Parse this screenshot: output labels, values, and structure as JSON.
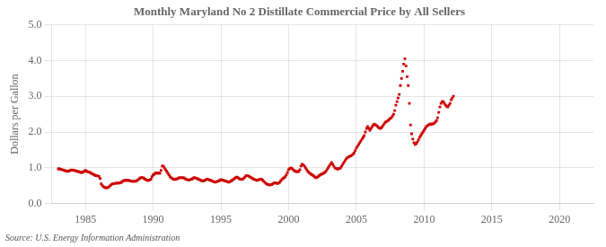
{
  "chart_data": {
    "type": "scatter",
    "title": "Monthly Maryland No 2 Distillate Commercial Price by All Sellers",
    "ylabel": "Dollars per Gallon",
    "annotation": "Source: U.S. Energy Information Administration",
    "color": "#cc0000",
    "marker": "square",
    "grid": true,
    "xlim": [
      1982.5,
      2022.5
    ],
    "ylim": [
      0.0,
      5.0
    ],
    "xticks": [
      1985,
      1990,
      1995,
      2000,
      2005,
      2010,
      2015,
      2020
    ],
    "yticks": [
      {
        "value": 0.0,
        "label": "0.0"
      },
      {
        "value": 1.0,
        "label": "1.0"
      },
      {
        "value": 2.0,
        "label": "2.0"
      },
      {
        "value": 3.0,
        "label": "3.0"
      },
      {
        "value": 4.0,
        "label": "4.0"
      },
      {
        "value": 5.0,
        "label": "5.0"
      }
    ],
    "x": [
      1983.0,
      1983.083,
      1983.167,
      1983.25,
      1983.333,
      1983.417,
      1983.5,
      1983.583,
      1983.667,
      1983.75,
      1983.833,
      1983.917,
      1984.0,
      1984.083,
      1984.167,
      1984.25,
      1984.333,
      1984.417,
      1984.5,
      1984.583,
      1984.667,
      1984.75,
      1984.833,
      1984.917,
      1985.0,
      1985.083,
      1985.167,
      1985.25,
      1985.333,
      1985.417,
      1985.5,
      1985.583,
      1985.667,
      1985.75,
      1985.833,
      1985.917,
      1986.0,
      1986.083,
      1986.167,
      1986.25,
      1986.333,
      1986.417,
      1986.5,
      1986.583,
      1986.667,
      1986.75,
      1986.833,
      1986.917,
      1987.0,
      1987.083,
      1987.167,
      1987.25,
      1987.333,
      1987.417,
      1987.5,
      1987.583,
      1987.667,
      1987.75,
      1987.833,
      1987.917,
      1988.0,
      1988.083,
      1988.167,
      1988.25,
      1988.333,
      1988.417,
      1988.5,
      1988.583,
      1988.667,
      1988.75,
      1988.833,
      1988.917,
      1989.0,
      1989.083,
      1989.167,
      1989.25,
      1989.333,
      1989.417,
      1989.5,
      1989.583,
      1989.667,
      1989.75,
      1989.833,
      1989.917,
      1990.0,
      1990.083,
      1990.167,
      1990.25,
      1990.333,
      1990.417,
      1990.5,
      1990.583,
      1990.667,
      1990.75,
      1990.833,
      1990.917,
      1991.0,
      1991.083,
      1991.167,
      1991.25,
      1991.333,
      1991.417,
      1991.5,
      1991.583,
      1991.667,
      1991.75,
      1991.833,
      1991.917,
      1992.0,
      1992.083,
      1992.167,
      1992.25,
      1992.333,
      1992.417,
      1992.5,
      1992.583,
      1992.667,
      1992.75,
      1992.833,
      1992.917,
      1993.0,
      1993.083,
      1993.167,
      1993.25,
      1993.333,
      1993.417,
      1993.5,
      1993.583,
      1993.667,
      1993.75,
      1993.833,
      1993.917,
      1994.0,
      1994.083,
      1994.167,
      1994.25,
      1994.333,
      1994.417,
      1994.5,
      1994.583,
      1994.667,
      1994.75,
      1994.833,
      1994.917,
      1995.0,
      1995.083,
      1995.167,
      1995.25,
      1995.333,
      1995.417,
      1995.5,
      1995.583,
      1995.667,
      1995.75,
      1995.833,
      1995.917,
      1996.0,
      1996.083,
      1996.167,
      1996.25,
      1996.333,
      1996.417,
      1996.5,
      1996.583,
      1996.667,
      1996.75,
      1996.833,
      1996.917,
      1997.0,
      1997.083,
      1997.167,
      1997.25,
      1997.333,
      1997.417,
      1997.5,
      1997.583,
      1997.667,
      1997.75,
      1997.833,
      1997.917,
      1998.0,
      1998.083,
      1998.167,
      1998.25,
      1998.333,
      1998.417,
      1998.5,
      1998.583,
      1998.667,
      1998.75,
      1998.833,
      1998.917,
      1999.0,
      1999.083,
      1999.167,
      1999.25,
      1999.333,
      1999.417,
      1999.5,
      1999.583,
      1999.667,
      1999.75,
      1999.833,
      1999.917,
      2000.0,
      2000.083,
      2000.167,
      2000.25,
      2000.333,
      2000.417,
      2000.5,
      2000.583,
      2000.667,
      2000.75,
      2000.833,
      2000.917,
      2001.0,
      2001.083,
      2001.167,
      2001.25,
      2001.333,
      2001.417,
      2001.5,
      2001.583,
      2001.667,
      2001.75,
      2001.833,
      2001.917,
      2002.0,
      2002.083,
      2002.167,
      2002.25,
      2002.333,
      2002.417,
      2002.5,
      2002.583,
      2002.667,
      2002.75,
      2002.833,
      2002.917,
      2003.0,
      2003.083,
      2003.167,
      2003.25,
      2003.333,
      2003.417,
      2003.5,
      2003.583,
      2003.667,
      2003.75,
      2003.833,
      2003.917,
      2004.0,
      2004.083,
      2004.167,
      2004.25,
      2004.333,
      2004.417,
      2004.5,
      2004.583,
      2004.667,
      2004.75,
      2004.833,
      2004.917,
      2005.0,
      2005.083,
      2005.167,
      2005.25,
      2005.333,
      2005.417,
      2005.5,
      2005.583,
      2005.667,
      2005.75,
      2005.833,
      2005.917,
      2006.0,
      2006.083,
      2006.167,
      2006.25,
      2006.333,
      2006.417,
      2006.5,
      2006.583,
      2006.667,
      2006.75,
      2006.833,
      2006.917,
      2007.0,
      2007.083,
      2007.167,
      2007.25,
      2007.333,
      2007.417,
      2007.5,
      2007.583,
      2007.667,
      2007.75,
      2007.833,
      2007.917,
      2008.0,
      2008.083,
      2008.167,
      2008.25,
      2008.333,
      2008.417,
      2008.5,
      2008.583,
      2008.667,
      2008.75,
      2008.833,
      2008.917,
      2009.0,
      2009.083,
      2009.167,
      2009.25,
      2009.333,
      2009.417,
      2009.5,
      2009.583,
      2009.667,
      2009.75,
      2009.833,
      2009.917,
      2010.0,
      2010.083,
      2010.167,
      2010.25,
      2010.333,
      2010.417,
      2010.5,
      2010.583,
      2010.667,
      2010.75,
      2010.833,
      2010.917,
      2011.0,
      2011.083,
      2011.167,
      2011.25,
      2011.333,
      2011.417,
      2011.5,
      2011.583,
      2011.667,
      2011.75,
      2011.833,
      2011.917,
      2012.0,
      2012.083,
      2012.167
    ],
    "values": [
      0.97,
      0.97,
      0.96,
      0.95,
      0.94,
      0.93,
      0.92,
      0.91,
      0.9,
      0.91,
      0.92,
      0.93,
      0.94,
      0.93,
      0.93,
      0.92,
      0.91,
      0.9,
      0.89,
      0.88,
      0.87,
      0.87,
      0.88,
      0.9,
      0.93,
      0.9,
      0.89,
      0.88,
      0.87,
      0.85,
      0.83,
      0.82,
      0.8,
      0.78,
      0.78,
      0.77,
      0.76,
      0.7,
      0.55,
      0.5,
      0.47,
      0.45,
      0.44,
      0.44,
      0.45,
      0.47,
      0.5,
      0.53,
      0.55,
      0.56,
      0.56,
      0.57,
      0.57,
      0.57,
      0.57,
      0.58,
      0.6,
      0.62,
      0.64,
      0.65,
      0.65,
      0.65,
      0.65,
      0.64,
      0.63,
      0.62,
      0.62,
      0.62,
      0.62,
      0.63,
      0.65,
      0.67,
      0.7,
      0.72,
      0.73,
      0.72,
      0.7,
      0.68,
      0.66,
      0.65,
      0.65,
      0.66,
      0.68,
      0.75,
      0.8,
      0.82,
      0.85,
      0.85,
      0.85,
      0.85,
      0.85,
      0.93,
      1.05,
      1.05,
      1.0,
      0.95,
      0.9,
      0.85,
      0.8,
      0.75,
      0.72,
      0.7,
      0.68,
      0.67,
      0.68,
      0.69,
      0.7,
      0.72,
      0.72,
      0.72,
      0.72,
      0.72,
      0.7,
      0.68,
      0.67,
      0.66,
      0.66,
      0.67,
      0.68,
      0.7,
      0.72,
      0.72,
      0.71,
      0.7,
      0.68,
      0.67,
      0.65,
      0.64,
      0.63,
      0.64,
      0.65,
      0.67,
      0.68,
      0.67,
      0.66,
      0.65,
      0.63,
      0.62,
      0.61,
      0.6,
      0.61,
      0.62,
      0.63,
      0.65,
      0.67,
      0.66,
      0.65,
      0.64,
      0.63,
      0.62,
      0.61,
      0.6,
      0.61,
      0.63,
      0.65,
      0.67,
      0.7,
      0.72,
      0.74,
      0.73,
      0.7,
      0.68,
      0.67,
      0.68,
      0.7,
      0.73,
      0.77,
      0.78,
      0.78,
      0.76,
      0.74,
      0.72,
      0.7,
      0.68,
      0.67,
      0.66,
      0.65,
      0.66,
      0.67,
      0.68,
      0.68,
      0.65,
      0.62,
      0.59,
      0.56,
      0.54,
      0.53,
      0.52,
      0.52,
      0.53,
      0.55,
      0.57,
      0.58,
      0.57,
      0.56,
      0.57,
      0.59,
      0.63,
      0.67,
      0.7,
      0.72,
      0.75,
      0.8,
      0.87,
      0.95,
      0.98,
      1.0,
      0.98,
      0.95,
      0.92,
      0.9,
      0.89,
      0.89,
      0.9,
      0.95,
      1.05,
      1.1,
      1.08,
      1.05,
      1.0,
      0.95,
      0.9,
      0.87,
      0.84,
      0.82,
      0.8,
      0.78,
      0.75,
      0.72,
      0.73,
      0.75,
      0.78,
      0.8,
      0.82,
      0.83,
      0.85,
      0.87,
      0.9,
      0.95,
      1.0,
      1.05,
      1.1,
      1.15,
      1.1,
      1.05,
      1.0,
      0.98,
      0.97,
      0.97,
      0.98,
      1.0,
      1.05,
      1.1,
      1.15,
      1.2,
      1.25,
      1.28,
      1.3,
      1.32,
      1.33,
      1.35,
      1.38,
      1.42,
      1.48,
      1.55,
      1.6,
      1.65,
      1.7,
      1.75,
      1.8,
      1.85,
      1.9,
      2.0,
      2.1,
      2.15,
      2.1,
      2.05,
      2.1,
      2.15,
      2.2,
      2.22,
      2.2,
      2.18,
      2.15,
      2.12,
      2.1,
      2.12,
      2.15,
      2.2,
      2.25,
      2.28,
      2.3,
      2.32,
      2.35,
      2.38,
      2.4,
      2.45,
      2.5,
      2.6,
      2.75,
      2.85,
      2.95,
      3.05,
      3.3,
      3.5,
      3.7,
      3.9,
      4.05,
      3.85,
      3.55,
      3.3,
      2.8,
      2.2,
      1.95,
      1.8,
      1.7,
      1.65,
      1.68,
      1.72,
      1.78,
      1.85,
      1.9,
      1.95,
      2.0,
      2.05,
      2.1,
      2.15,
      2.18,
      2.2,
      2.22,
      2.22,
      2.22,
      2.23,
      2.25,
      2.28,
      2.32,
      2.4,
      2.55,
      2.7,
      2.8,
      2.85,
      2.85,
      2.8,
      2.75,
      2.72,
      2.7,
      2.75,
      2.8,
      2.9,
      2.95,
      3.0
    ]
  }
}
